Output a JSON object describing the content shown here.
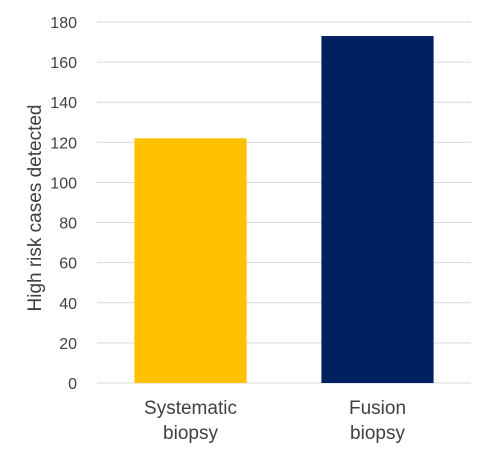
{
  "chart_data": {
    "type": "bar",
    "title": "",
    "xlabel": "",
    "ylabel": "High risk cases detected",
    "categories": [
      [
        "Systematic",
        "biopsy"
      ],
      [
        "Fusion",
        "biopsy"
      ]
    ],
    "values": [
      122,
      173
    ],
    "colors": [
      "#FFC000",
      "#002060"
    ],
    "ylim": [
      0,
      180
    ],
    "yticks": [
      0,
      20,
      40,
      60,
      80,
      100,
      120,
      140,
      160,
      180
    ],
    "grid": true,
    "legend": false,
    "gridColor": "#D9D9D9"
  }
}
